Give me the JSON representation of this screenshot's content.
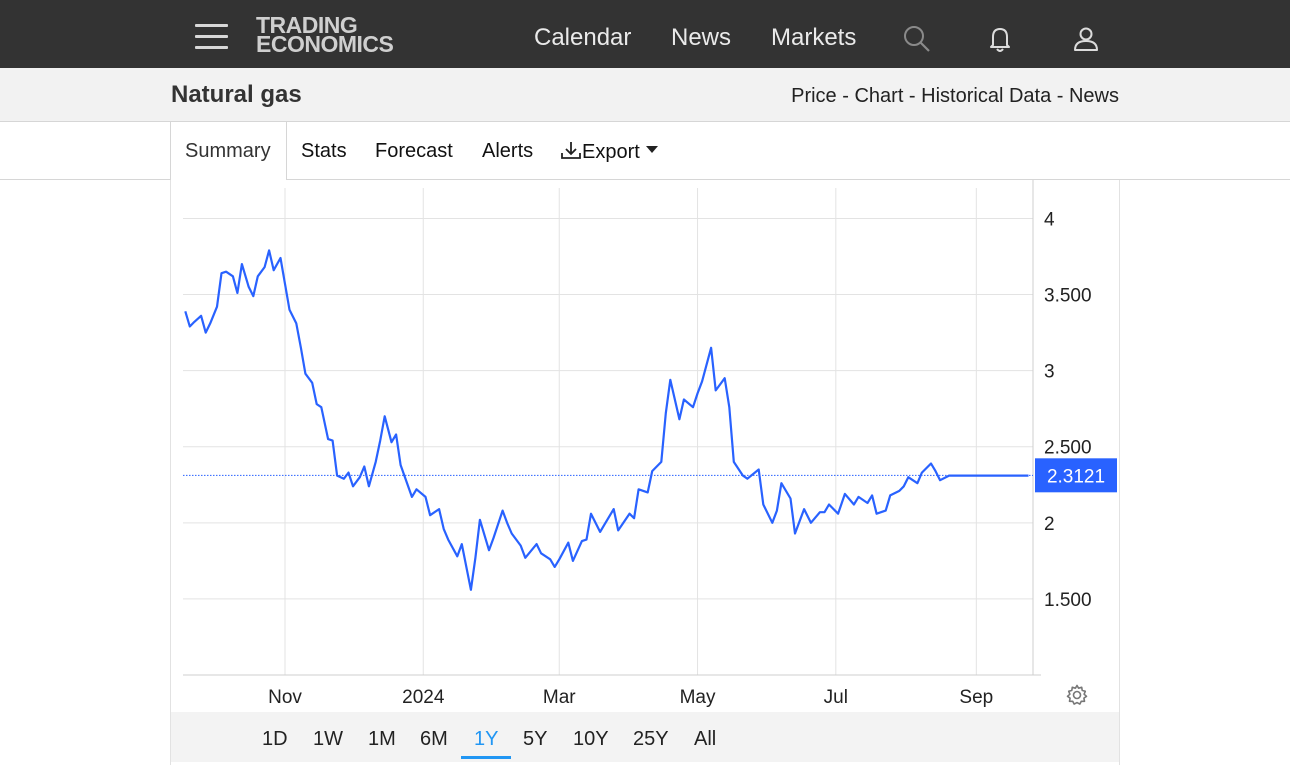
{
  "nav": {
    "logo_line1": "TRADING",
    "logo_line2": "ECONOMICS",
    "links": [
      "Calendar",
      "News",
      "Markets"
    ],
    "icons": [
      "search-icon",
      "bell-icon",
      "user-icon"
    ]
  },
  "header": {
    "title": "Natural gas",
    "crumbs": [
      "Price",
      "Chart",
      "Historical Data",
      "News"
    ],
    "separator": " - "
  },
  "tabs": {
    "summary": "Summary",
    "stats": "Stats",
    "forecast": "Forecast",
    "alerts": "Alerts",
    "export": "Export"
  },
  "ranges": {
    "items": [
      "1D",
      "1W",
      "1M",
      "6M",
      "1Y",
      "5Y",
      "10Y",
      "25Y",
      "All"
    ],
    "active": "1Y"
  },
  "colors": {
    "line": "#2962ff",
    "nav_bg": "#333333",
    "accent": "#2196f3",
    "price_tag": "#2962ff"
  },
  "chart_data": {
    "type": "line",
    "ylim": [
      1,
      4.2
    ],
    "yticks": [
      1.5,
      2,
      2.5,
      3,
      3.5,
      4
    ],
    "ytick_labels": [
      "1.500",
      "2",
      "2.500",
      "3",
      "3.500",
      "4"
    ],
    "xticks": [
      "2023-11-01",
      "2024-01-01",
      "2024-03-01",
      "2024-05-01",
      "2024-07-01",
      "2024-09-01"
    ],
    "xtick_labels": [
      "Nov",
      "2024",
      "Mar",
      "May",
      "Jul",
      "Sep"
    ],
    "xlim": [
      "2023-09-17",
      "2024-09-26"
    ],
    "last_value": 2.3121,
    "last_value_label": "2.3121",
    "grid": true,
    "series": [
      {
        "x": [
          "2023-09-18",
          "2023-09-20",
          "2023-09-22",
          "2023-09-25",
          "2023-09-27",
          "2023-09-29",
          "2023-10-02",
          "2023-10-04",
          "2023-10-06",
          "2023-10-09",
          "2023-10-11",
          "2023-10-13",
          "2023-10-16",
          "2023-10-18",
          "2023-10-20",
          "2023-10-23",
          "2023-10-25",
          "2023-10-27",
          "2023-10-30",
          "2023-11-01",
          "2023-11-03",
          "2023-11-06",
          "2023-11-08",
          "2023-11-10",
          "2023-11-13",
          "2023-11-15",
          "2023-11-17",
          "2023-11-20",
          "2023-11-22",
          "2023-11-24",
          "2023-11-27",
          "2023-11-29",
          "2023-12-01",
          "2023-12-04",
          "2023-12-06",
          "2023-12-08",
          "2023-12-11",
          "2023-12-13",
          "2023-12-15",
          "2023-12-18",
          "2023-12-20",
          "2023-12-22",
          "2023-12-27",
          "2023-12-29",
          "2024-01-02",
          "2024-01-04",
          "2024-01-08",
          "2024-01-10",
          "2024-01-12",
          "2024-01-16",
          "2024-01-18",
          "2024-01-22",
          "2024-01-24",
          "2024-01-26",
          "2024-01-30",
          "2024-02-01",
          "2024-02-05",
          "2024-02-07",
          "2024-02-09",
          "2024-02-13",
          "2024-02-15",
          "2024-02-20",
          "2024-02-22",
          "2024-02-26",
          "2024-02-28",
          "2024-03-01",
          "2024-03-05",
          "2024-03-07",
          "2024-03-11",
          "2024-03-13",
          "2024-03-15",
          "2024-03-19",
          "2024-03-21",
          "2024-03-25",
          "2024-03-27",
          "2024-04-01",
          "2024-04-03",
          "2024-04-05",
          "2024-04-09",
          "2024-04-11",
          "2024-04-15",
          "2024-04-17",
          "2024-04-19",
          "2024-04-23",
          "2024-04-25",
          "2024-04-29",
          "2024-05-01",
          "2024-05-03",
          "2024-05-07",
          "2024-05-09",
          "2024-05-13",
          "2024-05-15",
          "2024-05-17",
          "2024-05-21",
          "2024-05-23",
          "2024-05-28",
          "2024-05-30",
          "2024-06-03",
          "2024-06-05",
          "2024-06-07",
          "2024-06-11",
          "2024-06-13",
          "2024-06-17",
          "2024-06-20",
          "2024-06-24",
          "2024-06-26",
          "2024-06-28",
          "2024-07-02",
          "2024-07-05",
          "2024-07-09",
          "2024-07-11",
          "2024-07-15",
          "2024-07-17",
          "2024-07-19",
          "2024-07-23",
          "2024-07-25",
          "2024-07-29",
          "2024-07-31",
          "2024-08-02",
          "2024-08-06",
          "2024-08-08",
          "2024-08-12",
          "2024-08-14",
          "2024-08-16",
          "2024-08-20",
          "2024-08-22",
          "2024-08-26",
          "2024-08-28",
          "2024-08-30",
          "2024-09-04",
          "2024-09-06",
          "2024-09-10",
          "2024-09-12",
          "2024-09-16",
          "2024-09-18",
          "2024-09-20",
          "2024-09-24"
        ],
        "y": [
          3.39,
          3.29,
          3.32,
          3.36,
          3.25,
          3.31,
          3.42,
          3.64,
          3.65,
          3.62,
          3.51,
          3.7,
          3.55,
          3.49,
          3.62,
          3.68,
          3.79,
          3.66,
          3.74,
          3.57,
          3.4,
          3.31,
          3.15,
          2.98,
          2.92,
          2.78,
          2.76,
          2.55,
          2.54,
          2.31,
          2.29,
          2.33,
          2.24,
          2.3,
          2.37,
          2.24,
          2.4,
          2.54,
          2.7,
          2.53,
          2.58,
          2.38,
          2.17,
          2.22,
          2.17,
          2.05,
          2.09,
          1.96,
          1.89,
          1.78,
          1.86,
          1.56,
          1.77,
          2.02,
          1.82,
          1.9,
          2.08,
          2.0,
          1.93,
          1.85,
          1.77,
          1.86,
          1.8,
          1.76,
          1.71,
          1.76,
          1.87,
          1.75,
          1.88,
          1.89,
          2.06,
          1.94,
          1.99,
          2.09,
          1.95,
          2.06,
          2.03,
          2.22,
          2.2,
          2.34,
          2.4,
          2.72,
          2.94,
          2.68,
          2.81,
          2.76,
          2.85,
          2.93,
          3.15,
          2.87,
          2.95,
          2.76,
          2.4,
          2.31,
          2.29,
          2.35,
          2.12,
          2.0,
          2.08,
          2.26,
          2.16,
          1.93,
          2.09,
          2.0,
          2.07,
          2.07,
          2.12,
          2.06,
          2.19,
          2.12,
          2.17,
          2.13,
          2.18,
          2.06,
          2.08,
          2.18,
          2.21,
          2.24,
          2.3,
          2.26,
          2.33,
          2.39,
          2.34,
          2.28,
          2.31,
          2.31,
          2.31,
          2.31,
          2.31,
          2.31,
          2.31,
          2.31,
          2.31,
          2.31,
          2.31,
          2.31,
          2.31
        ]
      }
    ]
  }
}
